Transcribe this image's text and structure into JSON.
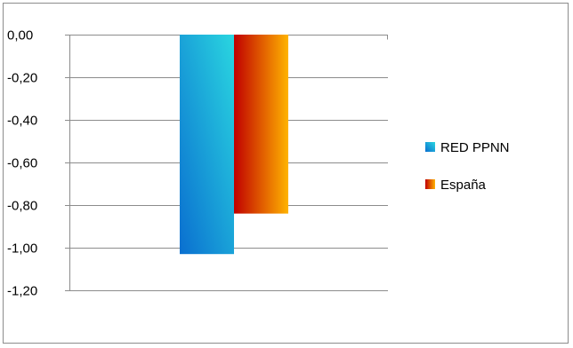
{
  "chart_data": {
    "type": "bar",
    "categories": [
      ""
    ],
    "series": [
      {
        "name": "RED PPNN",
        "values": [
          -1.03
        ],
        "color_light": "#2ad6e0",
        "color_dark": "#0a6fd0"
      },
      {
        "name": "España",
        "values": [
          -0.84
        ],
        "color_light": "#ffb300",
        "color_dark": "#c00000"
      }
    ],
    "ylim": [
      -1.2,
      0
    ],
    "yticks": [
      0,
      -0.2,
      -0.4,
      -0.6,
      -0.8,
      -1,
      -1.2
    ],
    "ytick_labels": [
      "0,00",
      "-0,20",
      "-0,40",
      "-0,60",
      "-0,80",
      "-1,00",
      "-1,20"
    ],
    "grid": true,
    "legend_position": "right"
  }
}
